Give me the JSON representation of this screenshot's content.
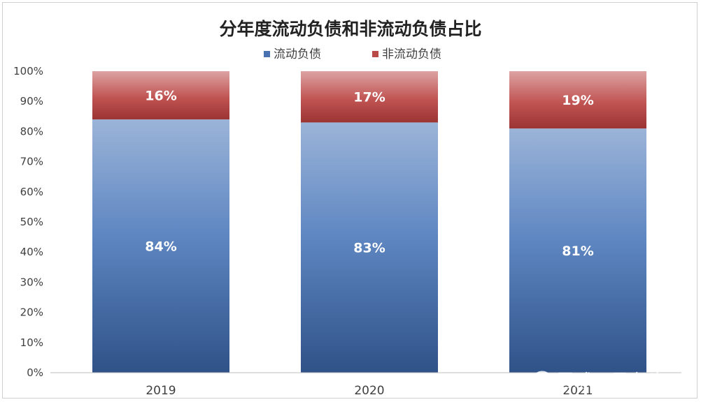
{
  "chart_data": {
    "type": "bar",
    "stacked": true,
    "title": "分年度流动负债和非流动负债占比",
    "categories": [
      "2019",
      "2020",
      "2021"
    ],
    "series": [
      {
        "name": "流动负债",
        "values": [
          84,
          83,
          81
        ],
        "labels": [
          "84%",
          "83%",
          "81%"
        ],
        "color": "#4a72b0"
      },
      {
        "name": "非流动负债",
        "values": [
          16,
          17,
          19
        ],
        "labels": [
          "16%",
          "17%",
          "19%"
        ],
        "color": "#b84a48"
      }
    ],
    "yticks": [
      "0%",
      "10%",
      "20%",
      "30%",
      "40%",
      "50%",
      "60%",
      "70%",
      "80%",
      "90%",
      "100%"
    ],
    "ylim": [
      0,
      100
    ],
    "legend": "top-center",
    "grid": false
  },
  "watermark": {
    "text": "雪球：愚老头",
    "icon": "snowball-logo-icon"
  }
}
